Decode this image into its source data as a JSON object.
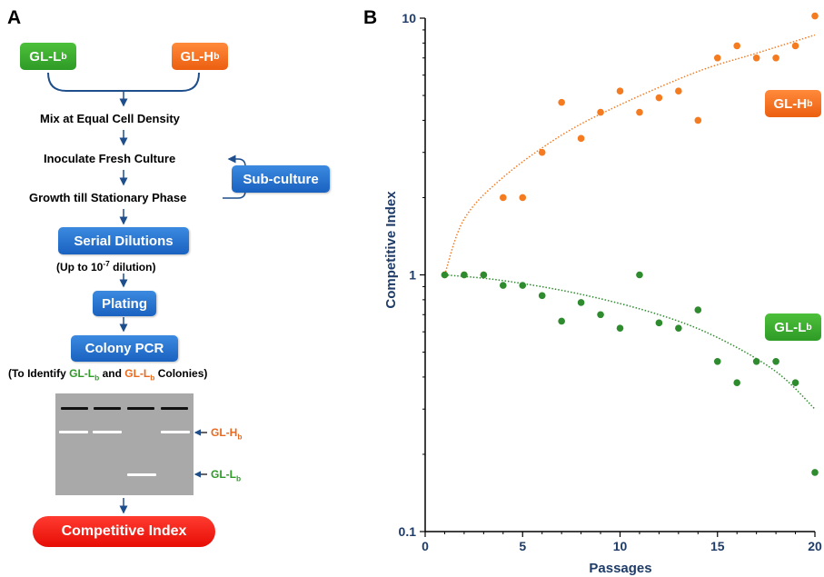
{
  "panel_a": {
    "letter": "A",
    "strain_low": "GL-L",
    "strain_low_sub": "b",
    "strain_high": "GL-H",
    "strain_high_sub": "b",
    "step_mix": "Mix at Equal Cell Density",
    "step_inoculate": "Inoculate Fresh Culture",
    "step_growth": "Growth till Stationary Phase",
    "subculture_label": "Sub-culture",
    "serial_label": "Serial Dilutions",
    "dilution_note_pre": "(Up to 10",
    "dilution_note_sup": "-7",
    "dilution_note_post": " dilution)",
    "plating_label": "Plating",
    "pcr_label": "Colony PCR",
    "identify_pre": "(To Identify ",
    "identify_s1": "GL-L",
    "identify_s1_sub": "b",
    "identify_mid": " and ",
    "identify_s2": "GL-L",
    "identify_s2_sub": "b",
    "identify_post": " Colonies)",
    "gel_label_high": "GL-H",
    "gel_label_high_sub": "b",
    "gel_label_low": "GL-L",
    "gel_label_low_sub": "b",
    "ci_label": "Competitive Index",
    "colors": {
      "green": "#2e9a27",
      "orange": "#e96a1e",
      "blue": "#1a62c0",
      "red": "#e70d05",
      "arrow": "#1f4e8c"
    }
  },
  "chart_data": {
    "type": "scatter",
    "panel_letter": "B",
    "xlabel": "Passages",
    "ylabel": "Competitive Index",
    "xlim": [
      0,
      20
    ],
    "ylim": [
      0.1,
      10
    ],
    "yscale": "log",
    "x_ticks": [
      "0",
      "5",
      "10",
      "15",
      "20"
    ],
    "y_ticks": [
      "0.1",
      "1",
      "10"
    ],
    "grid": false,
    "series": [
      {
        "name": "GL-H",
        "name_sub": "b",
        "color": "#f47b20",
        "x": [
          1,
          2,
          3,
          4,
          5,
          6,
          7,
          8,
          9,
          10,
          11,
          12,
          13,
          14,
          15,
          16,
          17,
          18,
          19,
          20
        ],
        "y": [
          1.0,
          1.0,
          1.0,
          2.0,
          2.0,
          3.0,
          4.7,
          3.4,
          4.3,
          5.2,
          4.3,
          4.9,
          5.2,
          4.0,
          7.0,
          7.8,
          7.0,
          7.0,
          7.8,
          10.2
        ],
        "trend": [
          [
            1,
            1.0
          ],
          [
            2,
            1.65
          ],
          [
            4,
            2.4
          ],
          [
            7,
            3.5
          ],
          [
            10,
            4.6
          ],
          [
            14,
            6.2
          ],
          [
            17,
            7.3
          ],
          [
            20,
            8.6
          ]
        ]
      },
      {
        "name": "GL-L",
        "name_sub": "b",
        "color": "#2e8b2e",
        "x": [
          1,
          2,
          3,
          4,
          5,
          6,
          7,
          8,
          9,
          10,
          11,
          12,
          13,
          14,
          15,
          16,
          17,
          18,
          19,
          20
        ],
        "y": [
          1.0,
          1.0,
          1.0,
          0.91,
          0.91,
          0.83,
          0.66,
          0.78,
          0.7,
          0.62,
          1.0,
          0.65,
          0.62,
          0.73,
          0.46,
          0.38,
          0.46,
          0.46,
          0.38,
          0.17
        ],
        "trend": [
          [
            1,
            1.0
          ],
          [
            4,
            0.95
          ],
          [
            8,
            0.84
          ],
          [
            12,
            0.7
          ],
          [
            15,
            0.57
          ],
          [
            18,
            0.42
          ],
          [
            20,
            0.3
          ]
        ]
      }
    ]
  }
}
